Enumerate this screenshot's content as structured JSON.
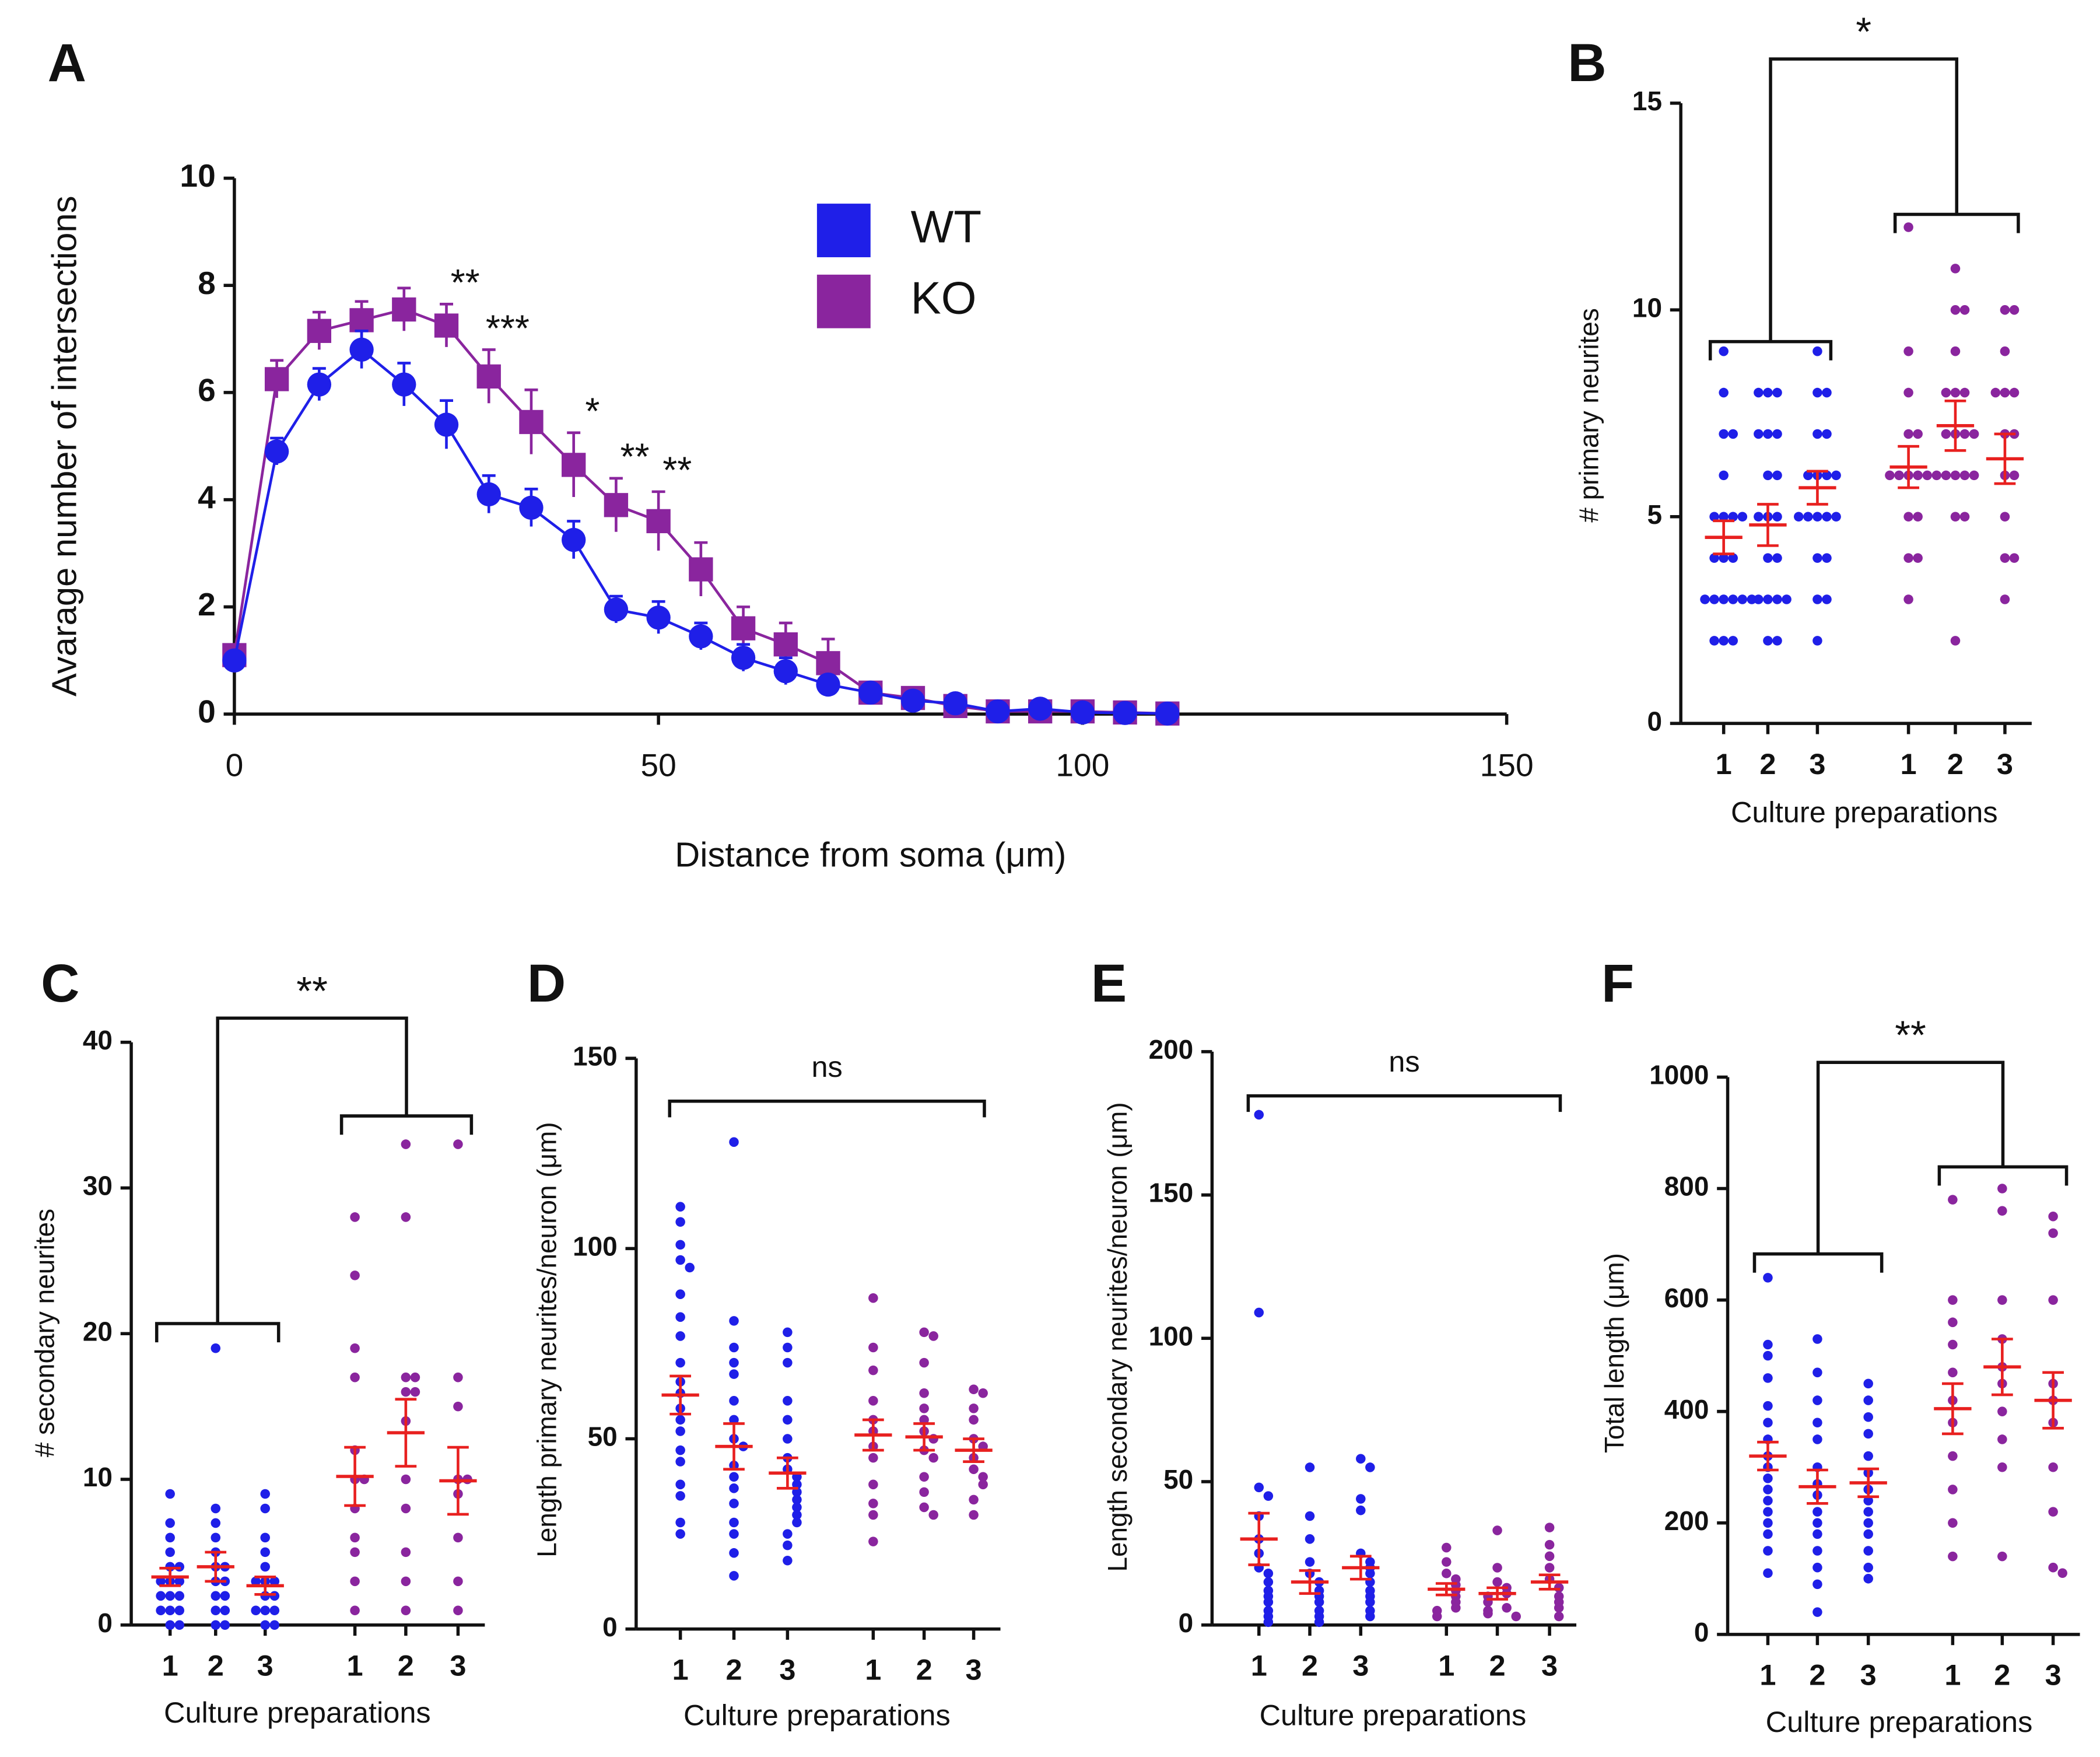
{
  "chart_data": [
    {
      "type": "line",
      "panel_label": "A",
      "x_label": "Distance from soma (μm)",
      "y_label": "Avarage number of intersections",
      "x": [
        0,
        5,
        10,
        15,
        20,
        25,
        30,
        35,
        40,
        45,
        50,
        55,
        60,
        65,
        70,
        75,
        80,
        85,
        90,
        95,
        100,
        105,
        110
      ],
      "series": [
        {
          "name": "WT",
          "color": "#1f1fe8",
          "marker": "circle",
          "values": [
            1.0,
            4.9,
            6.15,
            6.8,
            6.15,
            5.4,
            4.1,
            3.85,
            3.25,
            1.95,
            1.8,
            1.45,
            1.05,
            0.8,
            0.55,
            0.4,
            0.25,
            0.2,
            0.05,
            0.1,
            0.03,
            0.02,
            0.01
          ],
          "errors": [
            0.1,
            0.25,
            0.3,
            0.35,
            0.4,
            0.45,
            0.35,
            0.35,
            0.35,
            0.25,
            0.3,
            0.25,
            0.25,
            0.25,
            0.15,
            0.15,
            0.1,
            0.1,
            0.05,
            0.05,
            0.03,
            0.02,
            0.01
          ]
        },
        {
          "name": "KO",
          "color": "#8a259e",
          "marker": "square",
          "values": [
            1.1,
            6.25,
            7.15,
            7.35,
            7.55,
            7.25,
            6.3,
            5.45,
            4.65,
            3.9,
            3.6,
            2.7,
            1.6,
            1.3,
            0.95,
            0.4,
            0.3,
            0.15,
            0.05,
            0.05,
            0.05,
            0.03,
            0.01
          ],
          "errors": [
            0.1,
            0.35,
            0.35,
            0.35,
            0.4,
            0.4,
            0.5,
            0.6,
            0.6,
            0.5,
            0.55,
            0.5,
            0.4,
            0.4,
            0.45,
            0.15,
            0.1,
            0.1,
            0.05,
            0.05,
            0.05,
            0.03,
            0.01
          ]
        }
      ],
      "annotations": [
        {
          "text": "**",
          "x": 25
        },
        {
          "text": "***",
          "x": 30
        },
        {
          "text": "*",
          "x": 40
        },
        {
          "text": "**",
          "x": 45
        },
        {
          "text": "**",
          "x": 50
        }
      ],
      "xlim": [
        0,
        150
      ],
      "xticks": [
        0,
        50,
        100,
        150
      ],
      "ylim": [
        0,
        10
      ],
      "yticks": [
        0,
        2,
        4,
        6,
        8,
        10
      ],
      "legend": "top"
    },
    {
      "type": "dotplot",
      "panel_label": "B",
      "x_label": "Culture preparations",
      "y_label": "# primary neurites",
      "categories": [
        "1",
        "2",
        "3",
        "1",
        "2",
        "3"
      ],
      "colors": [
        "#1f1fe8",
        "#1f1fe8",
        "#1f1fe8",
        "#8a259e",
        "#8a259e",
        "#8a259e"
      ],
      "points": [
        [
          9,
          8,
          7,
          7,
          6,
          5,
          5,
          5,
          4,
          4,
          3,
          3,
          3,
          3,
          3,
          3,
          2,
          2,
          2,
          5,
          4
        ],
        [
          8,
          8,
          7,
          7,
          6,
          6,
          5,
          5,
          5,
          4,
          4,
          3,
          3,
          3,
          3,
          2,
          2,
          8,
          7
        ],
        [
          9,
          8,
          8,
          7,
          7,
          6,
          6,
          6,
          6,
          5,
          5,
          5,
          5,
          5,
          4,
          4,
          3,
          3,
          2
        ],
        [
          12,
          9,
          8,
          7,
          7,
          6,
          6,
          6,
          6,
          6,
          5,
          5,
          4,
          4,
          3
        ],
        [
          11,
          10,
          10,
          9,
          8,
          8,
          8,
          7,
          7,
          7,
          7,
          6,
          6,
          6,
          6,
          6,
          5,
          5,
          2
        ],
        [
          10,
          10,
          9,
          8,
          8,
          8,
          7,
          7,
          6,
          6,
          5,
          4,
          4,
          3
        ]
      ],
      "means": [
        4.5,
        4.8,
        5.7,
        6.2,
        7.2,
        6.4
      ],
      "sems": [
        0.4,
        0.5,
        0.4,
        0.5,
        0.6,
        0.6
      ],
      "mean_color": "#e8201f",
      "significance": "*",
      "bracket": "groups",
      "ylim": [
        0,
        15
      ],
      "yticks": [
        0,
        5,
        10,
        15
      ]
    },
    {
      "type": "dotplot",
      "panel_label": "C",
      "x_label": "Culture preparations",
      "y_label": "# secondary neurites",
      "categories": [
        "1",
        "2",
        "3",
        "1",
        "2",
        "3"
      ],
      "colors": [
        "#1f1fe8",
        "#1f1fe8",
        "#1f1fe8",
        "#8a259e",
        "#8a259e",
        "#8a259e"
      ],
      "points": [
        [
          9,
          7,
          6,
          5,
          4,
          4,
          3,
          3,
          3,
          2,
          2,
          2,
          1,
          1,
          1,
          0,
          0
        ],
        [
          19,
          8,
          7,
          6,
          5,
          4,
          4,
          3,
          3,
          2,
          2,
          1,
          1,
          0,
          0
        ],
        [
          9,
          8,
          6,
          5,
          4,
          3,
          3,
          3,
          2,
          2,
          1,
          1,
          1,
          0,
          0
        ],
        [
          28,
          24,
          19,
          17,
          12,
          10,
          10,
          8,
          6,
          5,
          3,
          1
        ],
        [
          33,
          28,
          17,
          17,
          16,
          16,
          14,
          10,
          8,
          5,
          3,
          1
        ],
        [
          33,
          17,
          15,
          10,
          10,
          9,
          6,
          3,
          1
        ]
      ],
      "means": [
        3.3,
        4.0,
        2.7,
        10.2,
        13.2,
        9.9
      ],
      "sems": [
        0.6,
        1.0,
        0.6,
        2.0,
        2.3,
        2.3
      ],
      "mean_color": "#e8201f",
      "significance": "**",
      "bracket": "groups",
      "ylim": [
        0,
        40
      ],
      "yticks": [
        0,
        10,
        20,
        30,
        40
      ]
    },
    {
      "type": "dotplot",
      "panel_label": "D",
      "x_label": "Culture preparations",
      "y_label": "Length primary neurites/neuron (μm)",
      "categories": [
        "1",
        "2",
        "3",
        "1",
        "2",
        "3"
      ],
      "colors": [
        "#1f1fe8",
        "#1f1fe8",
        "#1f1fe8",
        "#8a259e",
        "#8a259e",
        "#8a259e"
      ],
      "points": [
        [
          111,
          107,
          101,
          97,
          95,
          88,
          82,
          77,
          70,
          65,
          62,
          58,
          55,
          52,
          47,
          44,
          38,
          35,
          28,
          25
        ],
        [
          128,
          81,
          74,
          70,
          67,
          60,
          55,
          50,
          48,
          43,
          40,
          37,
          33,
          28,
          25,
          20,
          14
        ],
        [
          78,
          74,
          70,
          60,
          55,
          50,
          45,
          42,
          40,
          38,
          36,
          34,
          32,
          30,
          28,
          25,
          22,
          18
        ],
        [
          87,
          74,
          68,
          60,
          55,
          52,
          48,
          45,
          38,
          33,
          30,
          23
        ],
        [
          78,
          77,
          70,
          62,
          58,
          55,
          52,
          50,
          47,
          45,
          40,
          36,
          32,
          30
        ],
        [
          63,
          62,
          58,
          55,
          50,
          48,
          45,
          42,
          40,
          38,
          34,
          30
        ]
      ],
      "means": [
        61.5,
        48,
        41,
        51,
        50.5,
        47
      ],
      "sems": [
        5,
        6,
        4,
        4,
        3.5,
        3
      ],
      "mean_color": "#e8201f",
      "significance": "ns",
      "bracket": "all",
      "ylim": [
        0,
        150
      ],
      "yticks": [
        0,
        50,
        100,
        150
      ]
    },
    {
      "type": "dotplot",
      "panel_label": "E",
      "x_label": "Culture preparations",
      "y_label": "Length secondary neurites/neuron (μm)",
      "categories": [
        "1",
        "2",
        "3",
        "1",
        "2",
        "3"
      ],
      "colors": [
        "#1f1fe8",
        "#1f1fe8",
        "#1f1fe8",
        "#8a259e",
        "#8a259e",
        "#8a259e"
      ],
      "points": [
        [
          178,
          109,
          48,
          45,
          38,
          30,
          25,
          20,
          18,
          15,
          12,
          10,
          8,
          5,
          3,
          1
        ],
        [
          55,
          38,
          30,
          22,
          18,
          15,
          12,
          10,
          8,
          5,
          3,
          1
        ],
        [
          58,
          55,
          44,
          40,
          25,
          22,
          20,
          18,
          15,
          12,
          10,
          8,
          5,
          3
        ],
        [
          27,
          22,
          18,
          16,
          14,
          12,
          10,
          8,
          6,
          5,
          3
        ],
        [
          33,
          20,
          15,
          13,
          11,
          10,
          8,
          6,
          5,
          4,
          3
        ],
        [
          34,
          28,
          24,
          20,
          16,
          13,
          10,
          8,
          6,
          3
        ]
      ],
      "means": [
        30,
        15,
        20,
        12.5,
        11,
        15
      ],
      "sems": [
        9,
        4,
        4,
        2,
        2,
        2.5
      ],
      "mean_color": "#e8201f",
      "significance": "ns",
      "bracket": "all",
      "ylim": [
        0,
        200
      ],
      "yticks": [
        0,
        50,
        100,
        150,
        200
      ]
    },
    {
      "type": "dotplot",
      "panel_label": "F",
      "x_label": "Culture preparations",
      "y_label": "Total length (μm)",
      "categories": [
        "1",
        "2",
        "3",
        "1",
        "2",
        "3"
      ],
      "colors": [
        "#1f1fe8",
        "#1f1fe8",
        "#1f1fe8",
        "#8a259e",
        "#8a259e",
        "#8a259e"
      ],
      "points": [
        [
          640,
          520,
          500,
          460,
          410,
          380,
          350,
          320,
          300,
          280,
          260,
          240,
          220,
          200,
          180,
          150,
          110
        ],
        [
          530,
          470,
          420,
          380,
          350,
          300,
          270,
          250,
          220,
          200,
          180,
          150,
          120,
          90,
          40
        ],
        [
          450,
          420,
          390,
          360,
          320,
          290,
          260,
          240,
          220,
          200,
          180,
          150,
          120,
          100
        ],
        [
          780,
          600,
          560,
          520,
          470,
          420,
          380,
          320,
          260,
          200,
          140
        ],
        [
          800,
          760,
          600,
          530,
          480,
          450,
          400,
          350,
          300,
          140
        ],
        [
          750,
          720,
          600,
          450,
          420,
          380,
          300,
          220,
          120,
          110
        ]
      ],
      "means": [
        320,
        265,
        272,
        405,
        480,
        420
      ],
      "sems": [
        25,
        30,
        25,
        45,
        50,
        50
      ],
      "mean_color": "#e8201f",
      "significance": "**",
      "bracket": "groups",
      "ylim": [
        0,
        1000
      ],
      "yticks": [
        0,
        200,
        400,
        600,
        800,
        1000
      ]
    }
  ]
}
